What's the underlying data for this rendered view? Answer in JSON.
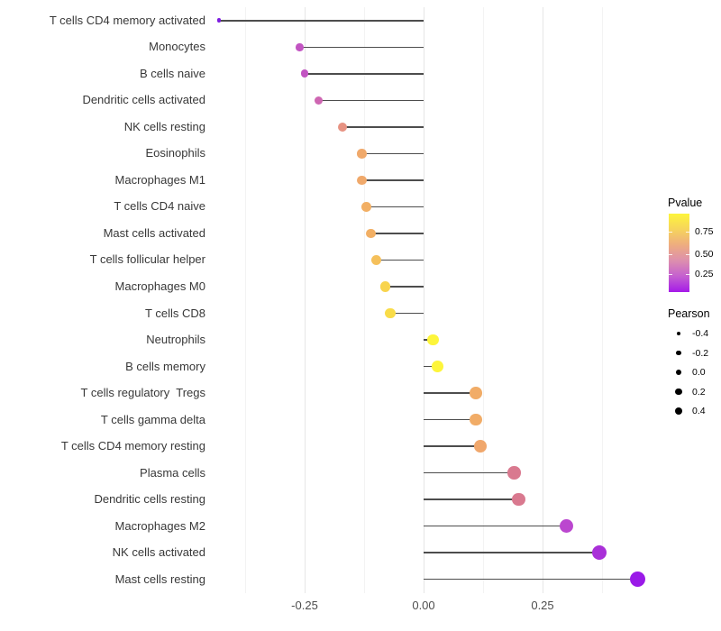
{
  "chart_data": {
    "type": "lollipop",
    "orientation": "horizontal",
    "title": "",
    "xlabel": "",
    "ylabel": "",
    "x_ticks": [
      "-0.25",
      "0.00",
      "0.25"
    ],
    "x_tick_values": [
      -0.25,
      0.0,
      0.25
    ],
    "xlim": [
      -0.47,
      0.47
    ],
    "grid": "vertical only, light gray on white",
    "stem_color": "#4d4d4d",
    "rows": [
      {
        "label": "T cells CD4 memory activated",
        "pearson": -0.43,
        "pvalue": 0.1,
        "color": "#7d1ce0"
      },
      {
        "label": "Monocytes",
        "pearson": -0.26,
        "pvalue": 0.28,
        "color": "#c254c2"
      },
      {
        "label": "B cells naive",
        "pearson": -0.25,
        "pvalue": 0.28,
        "color": "#c254c2"
      },
      {
        "label": "Dendritic cells activated",
        "pearson": -0.22,
        "pvalue": 0.33,
        "color": "#ce66b2"
      },
      {
        "label": "NK cells resting",
        "pearson": -0.17,
        "pvalue": 0.5,
        "color": "#e79383"
      },
      {
        "label": "Eosinophils",
        "pearson": -0.13,
        "pvalue": 0.6,
        "color": "#f0a96b"
      },
      {
        "label": "Macrophages M1",
        "pearson": -0.13,
        "pvalue": 0.6,
        "color": "#f0a96b"
      },
      {
        "label": "T cells CD4 naive",
        "pearson": -0.12,
        "pvalue": 0.62,
        "color": "#f2af64"
      },
      {
        "label": "Mast cells activated",
        "pearson": -0.11,
        "pvalue": 0.62,
        "color": "#f2af64"
      },
      {
        "label": "T cells follicular helper",
        "pearson": -0.1,
        "pvalue": 0.68,
        "color": "#f5c05b"
      },
      {
        "label": "Macrophages M0",
        "pearson": -0.08,
        "pvalue": 0.76,
        "color": "#f8d44e"
      },
      {
        "label": "T cells CD8",
        "pearson": -0.07,
        "pvalue": 0.79,
        "color": "#f9dc48"
      },
      {
        "label": "Neutrophils",
        "pearson": 0.02,
        "pvalue": 0.92,
        "color": "#fdf53b"
      },
      {
        "label": "B cells memory",
        "pearson": 0.03,
        "pvalue": 0.92,
        "color": "#fdf53b"
      },
      {
        "label": "T cells regulatory  Tregs",
        "pearson": 0.11,
        "pvalue": 0.61,
        "color": "#f1ac67"
      },
      {
        "label": "T cells gamma delta",
        "pearson": 0.11,
        "pvalue": 0.61,
        "color": "#f1ac67"
      },
      {
        "label": "T cells CD4 memory resting",
        "pearson": 0.12,
        "pvalue": 0.59,
        "color": "#f0a76c"
      },
      {
        "label": "Plasma cells",
        "pearson": 0.19,
        "pvalue": 0.44,
        "color": "#d9798f"
      },
      {
        "label": "Dendritic cells resting",
        "pearson": 0.2,
        "pvalue": 0.44,
        "color": "#d9798f"
      },
      {
        "label": "Macrophages M2",
        "pearson": 0.3,
        "pvalue": 0.27,
        "color": "#bb47cf"
      },
      {
        "label": "NK cells activated",
        "pearson": 0.37,
        "pvalue": 0.17,
        "color": "#a930d8"
      },
      {
        "label": "Mast cells resting",
        "pearson": 0.45,
        "pvalue": 0.12,
        "color": "#9a1ae8"
      }
    ],
    "legend_pvalue": {
      "title": "Pvalue",
      "tick_labels": [
        "0.75",
        "0.50",
        "0.25"
      ],
      "gradient_top_to_bottom": [
        "#fdf53b",
        "#f6d45c",
        "#eeac80",
        "#dd8fae",
        "#c45fd0",
        "#a51ae8"
      ]
    },
    "legend_pearson": {
      "title": "Pearson",
      "dot_color": "#000000",
      "items": [
        {
          "label": "-0.4",
          "diameter": 4
        },
        {
          "label": "-0.2",
          "diameter": 5.5
        },
        {
          "label": "0.0",
          "diameter": 6.5
        },
        {
          "label": "0.2",
          "diameter": 7.5
        },
        {
          "label": "0.4",
          "diameter": 8.5
        }
      ]
    }
  }
}
